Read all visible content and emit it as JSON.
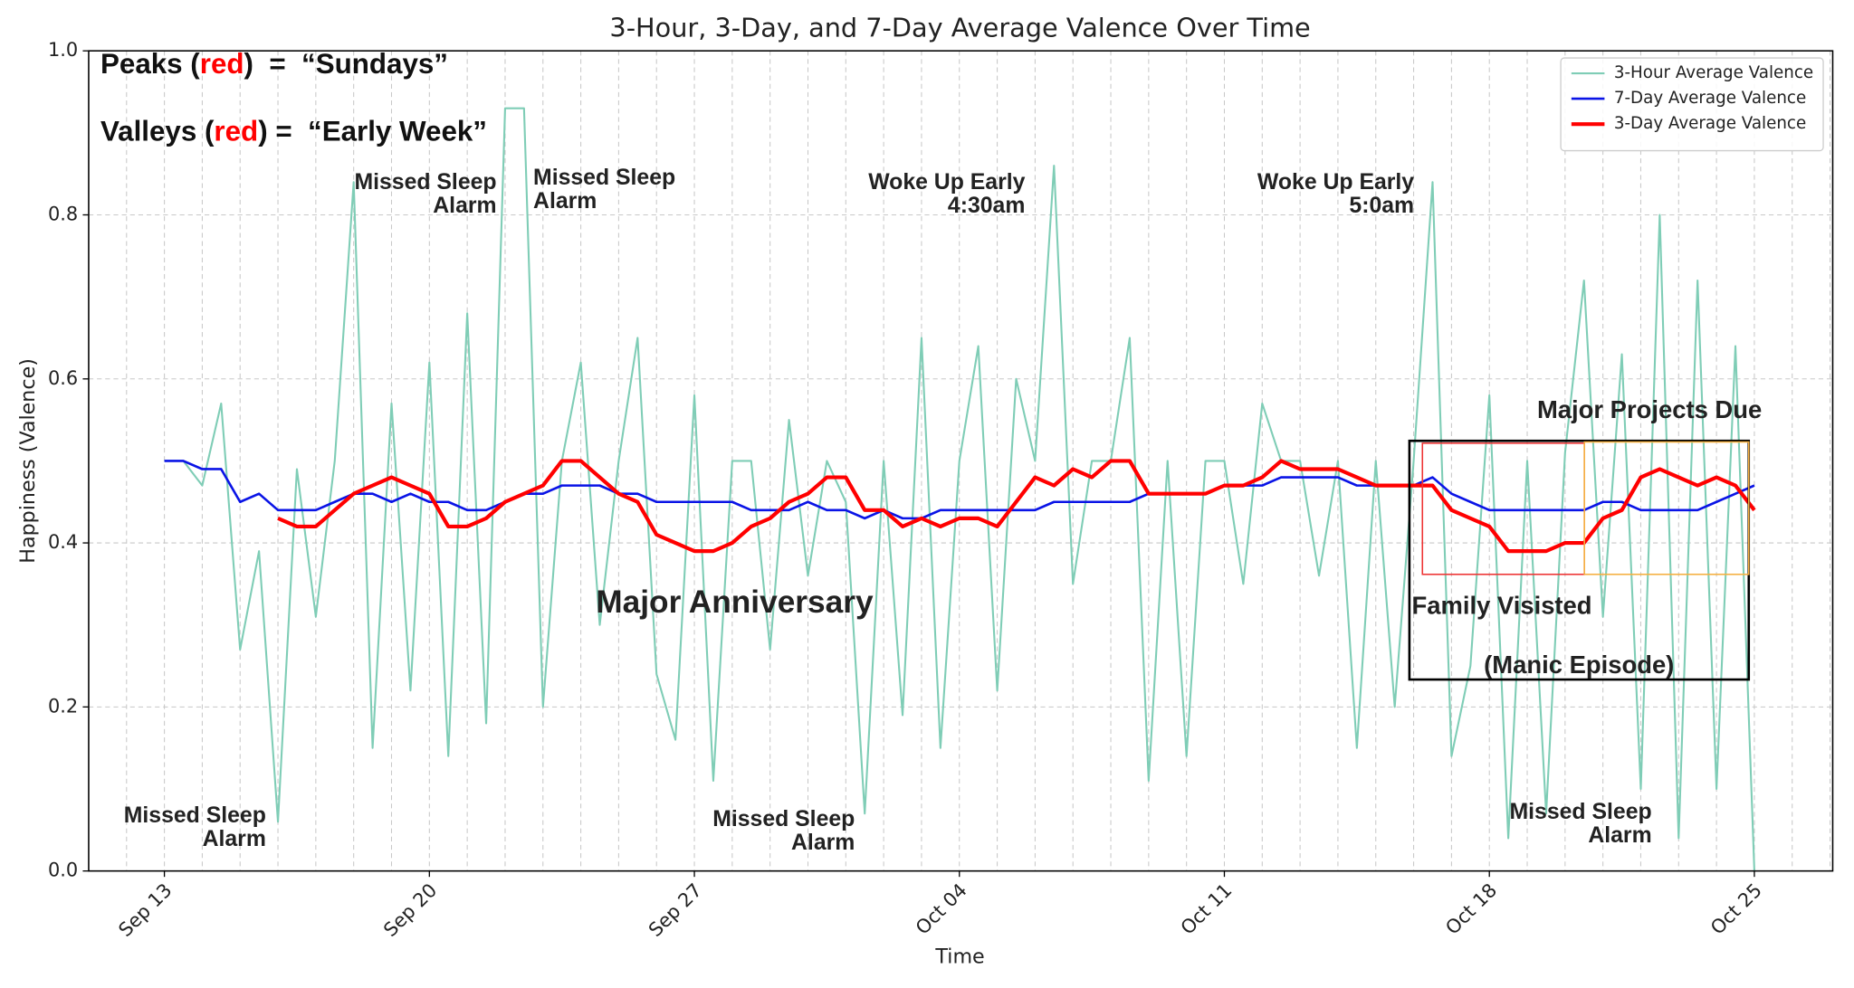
{
  "chart_data": {
    "type": "line",
    "title": "3-Hour, 3-Day, and 7-Day Average Valence Over Time",
    "xlabel": "Time",
    "ylabel": "Happiness (Valence)",
    "xlim": [
      -2,
      44.07
    ],
    "ylim": [
      0,
      1
    ],
    "xticks": [
      {
        "value": 0,
        "label": "Sep 13"
      },
      {
        "value": 7,
        "label": "Sep 20"
      },
      {
        "value": 14,
        "label": "Sep 27"
      },
      {
        "value": 21,
        "label": "Oct 04"
      },
      {
        "value": 28,
        "label": "Oct 11"
      },
      {
        "value": 35,
        "label": "Oct 18"
      },
      {
        "value": 42,
        "label": "Oct 25"
      }
    ],
    "x_minor_ticks": [
      -1,
      0,
      1,
      2,
      3,
      4,
      5,
      6,
      7,
      8,
      9,
      10,
      11,
      12,
      13,
      14,
      15,
      16,
      17,
      18,
      19,
      20,
      21,
      22,
      23,
      24,
      25,
      26,
      27,
      28,
      29,
      30,
      31,
      32,
      33,
      34,
      35,
      36,
      37,
      38,
      39,
      40,
      41,
      42,
      43,
      44
    ],
    "yticks": [
      {
        "value": 0,
        "label": "0.0"
      },
      0.2,
      0.4,
      0.6,
      0.8,
      {
        "value": 1,
        "label": "1.0"
      }
    ],
    "grid": true,
    "legend": "upper right",
    "x": [
      0,
      0.5,
      1,
      1.5,
      2,
      2.5,
      3,
      3.5,
      4,
      4.5,
      5,
      5.5,
      6,
      6.5,
      7,
      7.5,
      8,
      8.5,
      9,
      9.5,
      10,
      10.5,
      11,
      11.5,
      12,
      12.5,
      13,
      13.5,
      14,
      14.5,
      15,
      15.5,
      16,
      16.5,
      17,
      17.5,
      18,
      18.5,
      19,
      19.5,
      20,
      20.5,
      21,
      21.5,
      22,
      22.5,
      23,
      23.5,
      24,
      24.5,
      25,
      25.5,
      26,
      26.5,
      27,
      27.5,
      28,
      28.5,
      29,
      29.5,
      30,
      30.5,
      31,
      31.5,
      32,
      32.5,
      33,
      33.5,
      34,
      34.5,
      35,
      35.5,
      36,
      36.5,
      37,
      37.5,
      38,
      38.5,
      39,
      39.5,
      40,
      40.5,
      41,
      41.5,
      42
    ],
    "series": [
      {
        "name": "3-Hour Average Valence",
        "color": "#7fcdb6",
        "width": 1.6,
        "values": [
          0.5,
          0.5,
          0.47,
          0.57,
          0.27,
          0.39,
          0.06,
          0.49,
          0.31,
          0.5,
          0.84,
          0.15,
          0.57,
          0.22,
          0.62,
          0.14,
          0.68,
          0.18,
          0.93,
          0.93,
          0.2,
          0.5,
          0.62,
          0.3,
          0.5,
          0.65,
          0.24,
          0.16,
          0.58,
          0.11,
          0.5,
          0.5,
          0.27,
          0.55,
          0.36,
          0.5,
          0.45,
          0.07,
          0.5,
          0.19,
          0.65,
          0.15,
          0.5,
          0.64,
          0.22,
          0.6,
          0.5,
          0.86,
          0.35,
          0.5,
          0.5,
          0.65,
          0.11,
          0.5,
          0.14,
          0.5,
          0.5,
          0.35,
          0.57,
          0.5,
          0.5,
          0.36,
          0.5,
          0.15,
          0.5,
          0.2,
          0.5,
          0.84,
          0.14,
          0.25,
          0.58,
          0.04,
          0.5,
          0.07,
          0.51,
          0.72,
          0.31,
          0.63,
          0.1,
          0.8,
          0.04,
          0.72,
          0.1,
          0.64,
          0.0
        ]
      },
      {
        "name": "7-Day Average Valence",
        "color": "#0a14e6",
        "width": 2,
        "values": [
          0.5,
          0.5,
          0.49,
          0.49,
          0.45,
          0.46,
          0.44,
          0.44,
          0.44,
          0.45,
          0.46,
          0.46,
          0.45,
          0.46,
          0.45,
          0.45,
          0.44,
          0.44,
          0.45,
          0.46,
          0.46,
          0.47,
          0.47,
          0.47,
          0.46,
          0.46,
          0.45,
          0.45,
          0.45,
          0.45,
          0.45,
          0.44,
          0.44,
          0.44,
          0.45,
          0.44,
          0.44,
          0.43,
          0.44,
          0.43,
          0.43,
          0.44,
          0.44,
          0.44,
          0.44,
          0.44,
          0.44,
          0.45,
          0.45,
          0.45,
          0.45,
          0.45,
          0.46,
          0.46,
          0.46,
          0.46,
          0.47,
          0.47,
          0.47,
          0.48,
          0.48,
          0.48,
          0.48,
          0.47,
          0.47,
          0.47,
          0.47,
          0.48,
          0.46,
          0.45,
          0.44,
          0.44,
          0.44,
          0.44,
          0.44,
          0.44,
          0.45,
          0.45,
          0.44,
          0.44,
          0.44,
          0.44,
          0.45,
          0.46,
          0.47
        ]
      },
      {
        "name": "3-Day Average Valence",
        "color": "#ff0000",
        "width": 3.2,
        "values": [
          null,
          null,
          null,
          null,
          null,
          null,
          0.43,
          0.42,
          0.42,
          0.44,
          0.46,
          0.47,
          0.48,
          0.47,
          0.46,
          0.42,
          0.42,
          0.43,
          0.45,
          0.46,
          0.47,
          0.5,
          0.5,
          0.48,
          0.46,
          0.45,
          0.41,
          0.4,
          0.39,
          0.39,
          0.4,
          0.42,
          0.43,
          0.45,
          0.46,
          0.48,
          0.48,
          0.44,
          0.44,
          0.42,
          0.43,
          0.42,
          0.43,
          0.43,
          0.42,
          0.45,
          0.48,
          0.47,
          0.49,
          0.48,
          0.5,
          0.5,
          0.46,
          0.46,
          0.46,
          0.46,
          0.47,
          0.47,
          0.48,
          0.5,
          0.49,
          0.49,
          0.49,
          0.48,
          0.47,
          0.47,
          0.47,
          0.47,
          0.44,
          0.43,
          0.42,
          0.39,
          0.39,
          0.39,
          0.4,
          0.4,
          0.43,
          0.44,
          0.48,
          0.49,
          0.48,
          0.47,
          0.48,
          0.47,
          0.44
        ]
      }
    ],
    "notes": [
      {
        "parts": [
          "Peaks (",
          "red",
          ")  =  “Sundays”"
        ],
        "colors": [
          "#111111",
          "#ff0000",
          "#111111"
        ]
      },
      {
        "parts": [
          "Valleys (",
          "red",
          ") =  “Early Week”"
        ],
        "colors": [
          "#111111",
          "#ff0000",
          "#111111"
        ]
      }
    ],
    "annotations": [
      {
        "lines": [
          "Missed Sleep",
          "Alarm"
        ],
        "color": "#9b1cf5"
      },
      {
        "lines": [
          "Missed Sleep",
          "Alarm"
        ],
        "color": "#9b1cf5"
      },
      {
        "lines": [
          "Woke Up Early",
          "4:30am"
        ],
        "color": "#9b1cf5"
      },
      {
        "lines": [
          "Woke Up Early",
          "5:0am"
        ],
        "color": "#9b1cf5"
      },
      {
        "lines": [
          "Missed Sleep",
          "Alarm"
        ],
        "color": "#9b1cf5"
      },
      {
        "lines": [
          "Missed Sleep",
          "Alarm"
        ],
        "color": "#9b1cf5"
      },
      {
        "lines": [
          "Missed Sleep",
          "Alarm"
        ],
        "color": "#9b1cf5"
      },
      {
        "lines": [
          "Major Anniversary"
        ],
        "color": "#ee1111"
      },
      {
        "lines": [
          "Family Visisted"
        ],
        "color": "#ee1111"
      },
      {
        "lines": [
          "(Manic Episode)"
        ],
        "color": "#000000"
      },
      {
        "lines": [
          "Major Projects Due"
        ],
        "color": "#f5b041"
      }
    ]
  }
}
